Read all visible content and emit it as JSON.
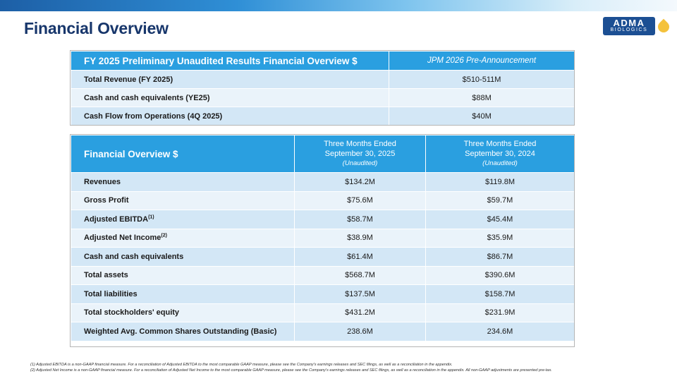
{
  "page": {
    "title": "Financial Overview"
  },
  "logo": {
    "name": "ADMA",
    "subtitle": "BIOLOGICS"
  },
  "colors": {
    "title": "#17366b",
    "header_blue": "#2a9fe0",
    "row_dark": "#d3e7f6",
    "row_light": "#eaf3fa",
    "logo_blue": "#1c4f93",
    "logo_drop": "#f4c23c"
  },
  "table1": {
    "header_left": "FY 2025 Preliminary Unaudited Results Financial Overview $",
    "header_right": "JPM 2026 Pre-Announcement",
    "rows": [
      {
        "label": "Total Revenue (FY 2025)",
        "value": "$510-511M"
      },
      {
        "label": "Cash and cash equivalents (YE25)",
        "value": "$88M"
      },
      {
        "label": "Cash Flow from Operations (4Q 2025)",
        "value": "$40M"
      }
    ]
  },
  "table2": {
    "header_left": "Financial Overview $",
    "col1": {
      "line1": "Three Months Ended",
      "line2": "September 30, 2025",
      "note": "(Unaudited)"
    },
    "col2": {
      "line1": "Three Months Ended",
      "line2": "September 30, 2024",
      "note": "(Unaudited)"
    },
    "rows": [
      {
        "label": "Revenues",
        "sup": "",
        "v2025": "$134.2M",
        "v2024": "$119.8M"
      },
      {
        "label": "Gross Profit",
        "sup": "",
        "v2025": "$75.6M",
        "v2024": "$59.7M"
      },
      {
        "label": "Adjusted EBITDA",
        "sup": "(1)",
        "v2025": "$58.7M",
        "v2024": "$45.4M"
      },
      {
        "label": "Adjusted Net Income",
        "sup": "(2)",
        "v2025": "$38.9M",
        "v2024": "$35.9M"
      },
      {
        "label": "Cash and cash equivalents",
        "sup": "",
        "v2025": "$61.4M",
        "v2024": "$86.7M"
      },
      {
        "label": "Total assets",
        "sup": "",
        "v2025": "$568.7M",
        "v2024": "$390.6M"
      },
      {
        "label": "Total liabilities",
        "sup": "",
        "v2025": "$137.5M",
        "v2024": "$158.7M"
      },
      {
        "label": "Total stockholders' equity",
        "sup": "",
        "v2025": "$431.2M",
        "v2024": "$231.9M"
      },
      {
        "label": "Weighted Avg. Common Shares Outstanding (Basic)",
        "sup": "",
        "v2025": "238.6M",
        "v2024": "234.6M"
      }
    ]
  },
  "footnotes": [
    "(1) Adjusted EBITDA is a non-GAAP financial measure. For a reconciliation of Adjusted EBITDA to the most comparable GAAP measure, please see the Company's earnings releases and SEC filings, as well as a reconciliation in the appendix.",
    "(2) Adjusted Net Income is a non-GAAP financial measure. For a reconciliation of Adjusted Net Income to the most comparable GAAP measure, please see the Company's earnings releases and SEC filings, as well as a reconciliation in the appendix. All non-GAAP adjustments are presented pre-tax."
  ]
}
